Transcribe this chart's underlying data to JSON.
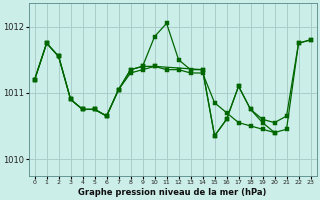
{
  "background_color": "#cceee8",
  "grid_color": "#aacccc",
  "line_color": "#006600",
  "marker_color": "#006600",
  "title": "Graphe pression niveau de la mer (hPa)",
  "xlim": [
    -0.5,
    23.5
  ],
  "ylim": [
    1009.75,
    1012.35
  ],
  "yticks": [
    1010,
    1011,
    1012
  ],
  "xticks": [
    0,
    1,
    2,
    3,
    4,
    5,
    6,
    7,
    8,
    9,
    10,
    11,
    12,
    13,
    14,
    15,
    16,
    17,
    18,
    19,
    20,
    21,
    22,
    23
  ],
  "series1_x": [
    0,
    1,
    2,
    3,
    4,
    5,
    6,
    7,
    8,
    9,
    10,
    11,
    12,
    13,
    14,
    15,
    16,
    17,
    18,
    19,
    20
  ],
  "series1_y": [
    1011.2,
    1011.75,
    1011.55,
    1010.9,
    1010.75,
    1010.75,
    1010.65,
    1011.05,
    1011.3,
    1011.35,
    1011.4,
    1011.35,
    1011.35,
    1011.3,
    1011.3,
    1010.85,
    1010.7,
    1010.55,
    1010.5,
    1010.45,
    1010.4
  ],
  "series2_x": [
    0,
    1,
    2,
    3,
    4,
    5,
    6,
    7,
    8,
    9,
    10,
    11,
    12,
    13,
    14,
    15,
    16,
    17,
    18,
    19,
    20,
    21,
    22,
    23
  ],
  "series2_y": [
    1011.2,
    1011.75,
    1011.55,
    1010.9,
    1010.75,
    1010.75,
    1010.65,
    1011.05,
    1011.35,
    1011.4,
    1011.85,
    1012.05,
    1011.5,
    1011.35,
    1011.35,
    1010.35,
    1010.6,
    1011.1,
    1010.75,
    1010.6,
    1010.55,
    1010.65,
    1011.75,
    1011.8
  ],
  "series3_x": [
    0,
    1,
    2,
    3,
    4,
    5,
    6,
    7,
    8,
    9,
    10,
    14,
    15,
    16,
    17,
    18,
    19,
    20,
    21,
    22,
    23
  ],
  "series3_y": [
    1011.2,
    1011.75,
    1011.55,
    1010.9,
    1010.75,
    1010.75,
    1010.65,
    1011.05,
    1011.35,
    1011.4,
    1011.4,
    1011.35,
    1010.35,
    1010.6,
    1011.1,
    1010.75,
    1010.55,
    1010.4,
    1010.45,
    1011.75,
    1011.8
  ]
}
